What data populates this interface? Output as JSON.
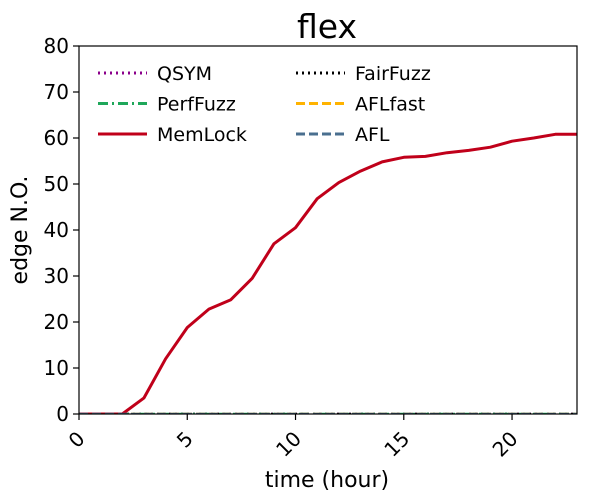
{
  "chart_data": {
    "type": "line",
    "title": "flex",
    "xlabel": "time (hour)",
    "ylabel": "edge N.O.",
    "xlim": [
      0,
      23
    ],
    "ylim": [
      0,
      80
    ],
    "x_ticks": [
      "0",
      "5",
      "10",
      "15",
      "20"
    ],
    "y_ticks": [
      "0",
      "10",
      "20",
      "30",
      "40",
      "50",
      "60",
      "70",
      "80"
    ],
    "grid": false,
    "legend_position": "top",
    "series": [
      {
        "name": "QSYM",
        "color": "#8b008b",
        "style": "dotted",
        "x": [
          0,
          23
        ],
        "y": [
          0,
          0
        ]
      },
      {
        "name": "FairFuzz",
        "color": "#000000",
        "style": "dotted",
        "x": [
          0,
          23
        ],
        "y": [
          0,
          0
        ]
      },
      {
        "name": "PerfFuzz",
        "color": "#1fa75a",
        "style": "dashdot",
        "x": [
          0,
          23
        ],
        "y": [
          0,
          0
        ]
      },
      {
        "name": "AFLfast",
        "color": "#ffb300",
        "style": "dashed",
        "x": [
          0,
          23
        ],
        "y": [
          0,
          0
        ]
      },
      {
        "name": "MemLock",
        "color": "#c0001a",
        "style": "solid",
        "x": [
          0,
          2,
          3,
          4,
          5,
          6,
          7,
          8,
          9,
          10,
          11,
          12,
          13,
          14,
          15,
          16,
          17,
          18,
          19,
          20,
          21,
          22,
          23
        ],
        "y": [
          0,
          0,
          3.5,
          12,
          18.8,
          22.8,
          24.8,
          29.5,
          37,
          40.5,
          46.8,
          50.3,
          52.8,
          54.8,
          55.8,
          56,
          56.8,
          57.3,
          58,
          59.3,
          60,
          60.8,
          60.8
        ]
      },
      {
        "name": "AFL",
        "color": "#4a6f8f",
        "style": "dashed",
        "x": [
          0,
          23
        ],
        "y": [
          0,
          0
        ]
      }
    ]
  }
}
